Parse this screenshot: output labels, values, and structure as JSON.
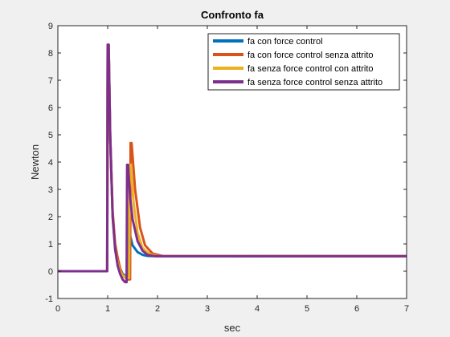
{
  "chart_data": {
    "type": "line",
    "title": "Confronto fa",
    "xlabel": "sec",
    "ylabel": "Newton",
    "xlim": [
      0,
      7
    ],
    "ylim": [
      -1,
      9
    ],
    "xticks": [
      0,
      1,
      2,
      3,
      4,
      5,
      6,
      7
    ],
    "yticks": [
      -1,
      0,
      1,
      2,
      3,
      4,
      5,
      6,
      7,
      8,
      9
    ],
    "grid": false,
    "legend_position": "top-right",
    "series": [
      {
        "name": "fa con force control",
        "color": "#0072BD",
        "points": [
          [
            0,
            0
          ],
          [
            0.99,
            0
          ],
          [
            1.0,
            8.3
          ],
          [
            1.02,
            8.3
          ],
          [
            1.05,
            5.0
          ],
          [
            1.1,
            2.0
          ],
          [
            1.15,
            0.9
          ],
          [
            1.2,
            0.4
          ],
          [
            1.25,
            0.1
          ],
          [
            1.3,
            -0.1
          ],
          [
            1.38,
            -0.2
          ],
          [
            1.4,
            -0.2
          ],
          [
            1.42,
            2.5
          ],
          [
            1.45,
            1.3
          ],
          [
            1.5,
            0.95
          ],
          [
            1.6,
            0.7
          ],
          [
            1.7,
            0.6
          ],
          [
            1.8,
            0.56
          ],
          [
            2.0,
            0.55
          ],
          [
            7,
            0.55
          ]
        ]
      },
      {
        "name": "fa con force control senza attrito",
        "color": "#D95319",
        "points": [
          [
            0,
            0
          ],
          [
            0.99,
            0
          ],
          [
            1.0,
            8.3
          ],
          [
            1.02,
            8.3
          ],
          [
            1.05,
            5.0
          ],
          [
            1.1,
            2.2
          ],
          [
            1.15,
            1.0
          ],
          [
            1.2,
            0.5
          ],
          [
            1.25,
            0.1
          ],
          [
            1.3,
            -0.15
          ],
          [
            1.4,
            -0.3
          ],
          [
            1.45,
            -0.3
          ],
          [
            1.46,
            4.7
          ],
          [
            1.48,
            4.7
          ],
          [
            1.55,
            3.0
          ],
          [
            1.65,
            1.6
          ],
          [
            1.75,
            0.95
          ],
          [
            1.9,
            0.65
          ],
          [
            2.1,
            0.56
          ],
          [
            7,
            0.55
          ]
        ]
      },
      {
        "name": "fa senza force control con attrito",
        "color": "#EDB120",
        "points": [
          [
            0,
            0
          ],
          [
            0.99,
            0
          ],
          [
            1.0,
            8.3
          ],
          [
            1.02,
            8.3
          ],
          [
            1.05,
            5.0
          ],
          [
            1.1,
            2.0
          ],
          [
            1.15,
            0.8
          ],
          [
            1.2,
            0.3
          ],
          [
            1.25,
            0.0
          ],
          [
            1.3,
            -0.15
          ],
          [
            1.38,
            -0.25
          ],
          [
            1.43,
            -0.25
          ],
          [
            1.44,
            3.9
          ],
          [
            1.46,
            3.9
          ],
          [
            1.52,
            2.5
          ],
          [
            1.6,
            1.4
          ],
          [
            1.7,
            0.85
          ],
          [
            1.85,
            0.62
          ],
          [
            2.0,
            0.56
          ],
          [
            7,
            0.55
          ]
        ]
      },
      {
        "name": "fa senza force control senza attrito",
        "color": "#7E2F8E",
        "points": [
          [
            0,
            0
          ],
          [
            0.99,
            0
          ],
          [
            1.0,
            8.3
          ],
          [
            1.02,
            8.3
          ],
          [
            1.05,
            5.0
          ],
          [
            1.1,
            2.0
          ],
          [
            1.15,
            0.8
          ],
          [
            1.2,
            0.2
          ],
          [
            1.25,
            -0.1
          ],
          [
            1.3,
            -0.3
          ],
          [
            1.35,
            -0.4
          ],
          [
            1.38,
            -0.4
          ],
          [
            1.39,
            3.9
          ],
          [
            1.41,
            3.9
          ],
          [
            1.45,
            2.7
          ],
          [
            1.5,
            1.9
          ],
          [
            1.6,
            1.1
          ],
          [
            1.7,
            0.75
          ],
          [
            1.8,
            0.6
          ],
          [
            1.95,
            0.55
          ],
          [
            2.2,
            0.55
          ],
          [
            7,
            0.55
          ]
        ]
      }
    ]
  }
}
